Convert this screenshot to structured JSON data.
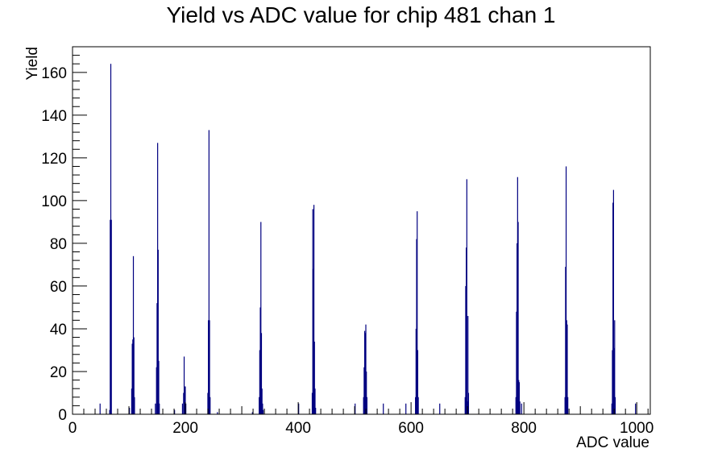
{
  "chart_data": {
    "type": "bar",
    "title": "Yield vs ADC value for chip 481 chan 1",
    "xlabel": "ADC value",
    "ylabel": "Yield",
    "xlim": [
      0,
      1024
    ],
    "ylim": [
      0,
      172
    ],
    "x_ticks": [
      0,
      200,
      400,
      600,
      800,
      1000
    ],
    "y_ticks": [
      0,
      20,
      40,
      60,
      80,
      100,
      120,
      140,
      160
    ],
    "bin_width": 1,
    "grid": false,
    "legend": "none",
    "colors": {
      "bars": "#000080",
      "axes": "#000000",
      "background": "#ffffff"
    },
    "series": [
      {
        "bins": [
          {
            "x": 48,
            "y": 5
          },
          {
            "x": 65,
            "y": 2
          },
          {
            "x": 66,
            "y": 91
          },
          {
            "x": 67,
            "y": 164
          },
          {
            "x": 68,
            "y": 91
          },
          {
            "x": 100,
            "y": 3
          },
          {
            "x": 104,
            "y": 12
          },
          {
            "x": 105,
            "y": 33
          },
          {
            "x": 106,
            "y": 35
          },
          {
            "x": 107,
            "y": 74
          },
          {
            "x": 108,
            "y": 36
          },
          {
            "x": 109,
            "y": 8
          },
          {
            "x": 146,
            "y": 5
          },
          {
            "x": 148,
            "y": 22
          },
          {
            "x": 149,
            "y": 52
          },
          {
            "x": 150,
            "y": 127
          },
          {
            "x": 151,
            "y": 77
          },
          {
            "x": 152,
            "y": 25
          },
          {
            "x": 153,
            "y": 5
          },
          {
            "x": 180,
            "y": 2
          },
          {
            "x": 194,
            "y": 5
          },
          {
            "x": 196,
            "y": 10
          },
          {
            "x": 197,
            "y": 27
          },
          {
            "x": 198,
            "y": 13
          },
          {
            "x": 199,
            "y": 13
          },
          {
            "x": 200,
            "y": 5
          },
          {
            "x": 239,
            "y": 10
          },
          {
            "x": 240,
            "y": 44
          },
          {
            "x": 241,
            "y": 133
          },
          {
            "x": 242,
            "y": 44
          },
          {
            "x": 243,
            "y": 8
          },
          {
            "x": 256,
            "y": 1
          },
          {
            "x": 318,
            "y": 1
          },
          {
            "x": 330,
            "y": 8
          },
          {
            "x": 331,
            "y": 30
          },
          {
            "x": 332,
            "y": 50
          },
          {
            "x": 333,
            "y": 90
          },
          {
            "x": 334,
            "y": 38
          },
          {
            "x": 335,
            "y": 12
          },
          {
            "x": 336,
            "y": 5
          },
          {
            "x": 337,
            "y": 2
          },
          {
            "x": 400,
            "y": 5
          },
          {
            "x": 424,
            "y": 10
          },
          {
            "x": 425,
            "y": 96
          },
          {
            "x": 426,
            "y": 68
          },
          {
            "x": 427,
            "y": 98
          },
          {
            "x": 428,
            "y": 34
          },
          {
            "x": 429,
            "y": 12
          },
          {
            "x": 430,
            "y": 3
          },
          {
            "x": 500,
            "y": 5
          },
          {
            "x": 515,
            "y": 8
          },
          {
            "x": 516,
            "y": 22
          },
          {
            "x": 517,
            "y": 39
          },
          {
            "x": 518,
            "y": 38
          },
          {
            "x": 519,
            "y": 42
          },
          {
            "x": 520,
            "y": 20
          },
          {
            "x": 521,
            "y": 8
          },
          {
            "x": 550,
            "y": 5
          },
          {
            "x": 590,
            "y": 5
          },
          {
            "x": 607,
            "y": 8
          },
          {
            "x": 608,
            "y": 40
          },
          {
            "x": 609,
            "y": 82
          },
          {
            "x": 610,
            "y": 95
          },
          {
            "x": 611,
            "y": 30
          },
          {
            "x": 612,
            "y": 8
          },
          {
            "x": 650,
            "y": 5
          },
          {
            "x": 695,
            "y": 8
          },
          {
            "x": 696,
            "y": 60
          },
          {
            "x": 697,
            "y": 78
          },
          {
            "x": 698,
            "y": 110
          },
          {
            "x": 699,
            "y": 6
          },
          {
            "x": 700,
            "y": 46
          },
          {
            "x": 701,
            "y": 10
          },
          {
            "x": 785,
            "y": 8
          },
          {
            "x": 786,
            "y": 48
          },
          {
            "x": 787,
            "y": 80
          },
          {
            "x": 788,
            "y": 111
          },
          {
            "x": 789,
            "y": 90
          },
          {
            "x": 790,
            "y": 16
          },
          {
            "x": 791,
            "y": 15
          },
          {
            "x": 792,
            "y": 6
          },
          {
            "x": 795,
            "y": 5
          },
          {
            "x": 872,
            "y": 8
          },
          {
            "x": 873,
            "y": 69
          },
          {
            "x": 874,
            "y": 116
          },
          {
            "x": 875,
            "y": 44
          },
          {
            "x": 876,
            "y": 42
          },
          {
            "x": 877,
            "y": 8
          },
          {
            "x": 955,
            "y": 5
          },
          {
            "x": 956,
            "y": 30
          },
          {
            "x": 957,
            "y": 99
          },
          {
            "x": 958,
            "y": 105
          },
          {
            "x": 959,
            "y": 31
          },
          {
            "x": 960,
            "y": 44
          },
          {
            "x": 961,
            "y": 8
          },
          {
            "x": 997,
            "y": 5
          }
        ]
      }
    ]
  }
}
